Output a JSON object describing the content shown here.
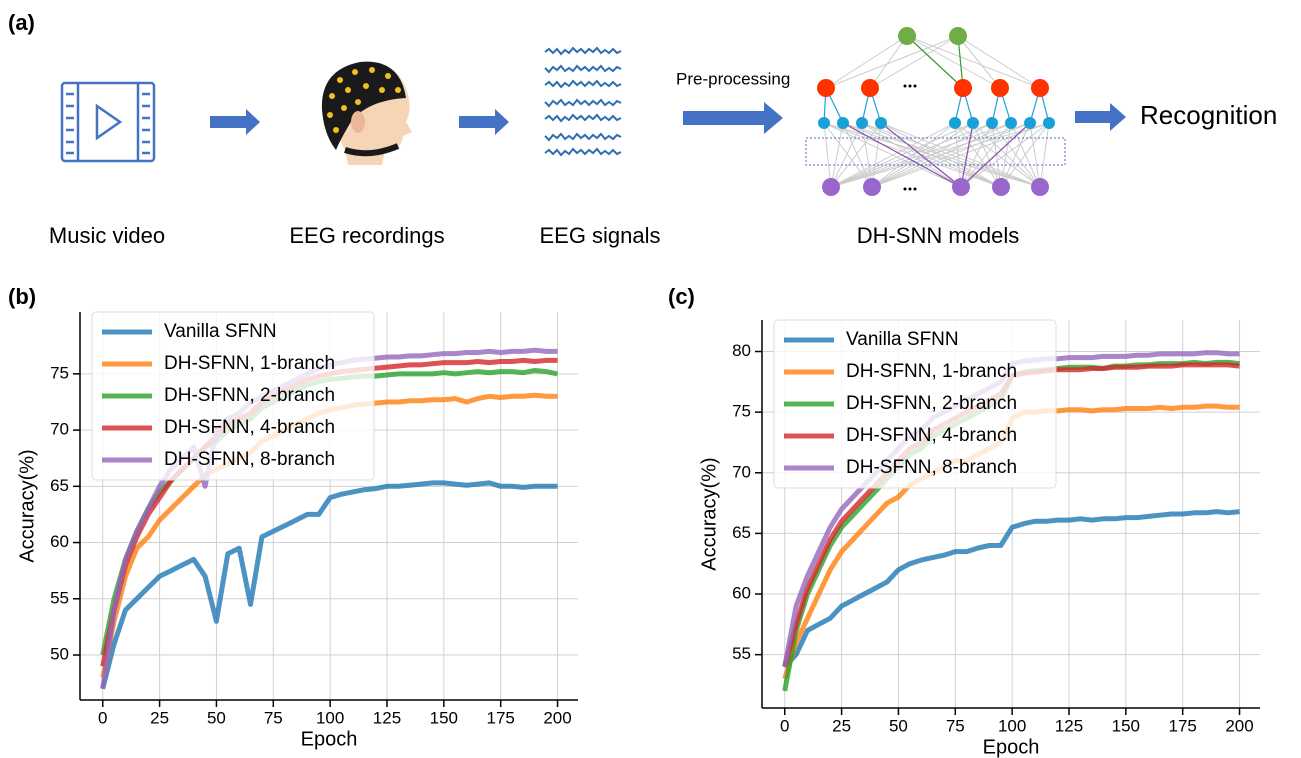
{
  "diagram": {
    "panel_label": "(a)",
    "steps": [
      "Music video",
      "EEG recordings",
      "EEG signals",
      "DH-SNN models"
    ],
    "arrow_label": "Pre-processing",
    "output": "Recognition"
  },
  "chart_data": [
    {
      "type": "line",
      "panel_label": "(b)",
      "x_label": "Epoch",
      "y_label": "Accuracy(%)",
      "grid": true,
      "legend": "upper left",
      "xlim": [
        -10,
        209
      ],
      "ylim": [
        46,
        80.5
      ],
      "xticks": [
        0,
        25,
        50,
        75,
        100,
        125,
        150,
        175,
        200
      ],
      "yticks": [
        50,
        55,
        60,
        65,
        70,
        75
      ],
      "x": [
        0,
        5,
        10,
        15,
        20,
        25,
        30,
        35,
        40,
        45,
        50,
        55,
        60,
        65,
        70,
        75,
        80,
        85,
        90,
        95,
        100,
        105,
        110,
        115,
        120,
        125,
        130,
        135,
        140,
        145,
        150,
        155,
        160,
        165,
        170,
        175,
        180,
        185,
        190,
        195,
        200
      ],
      "series": [
        {
          "name": "Vanilla SFNN",
          "color": "#1f77b4",
          "values": [
            47,
            51,
            54,
            55,
            56,
            57,
            57.5,
            58,
            58.5,
            57,
            53,
            59,
            59.5,
            54.5,
            60.5,
            61,
            61.5,
            62,
            62.5,
            62.5,
            64,
            64.3,
            64.5,
            64.7,
            64.8,
            65,
            65,
            65.1,
            65.2,
            65.3,
            65.3,
            65.2,
            65.1,
            65.2,
            65.3,
            65,
            65,
            64.9,
            65,
            65,
            65
          ]
        },
        {
          "name": "DH-SFNN, 1-branch",
          "color": "#ff7f0e",
          "values": [
            48,
            53,
            57,
            59.5,
            60.5,
            62,
            63,
            64,
            65,
            66,
            66.5,
            67,
            67.5,
            68,
            69,
            69.5,
            70,
            70.5,
            71,
            71.5,
            71.8,
            72,
            72.2,
            72.3,
            72.4,
            72.5,
            72.5,
            72.6,
            72.6,
            72.7,
            72.7,
            72.8,
            72.5,
            72.8,
            73,
            72.9,
            73,
            73,
            73.1,
            73,
            73
          ]
        },
        {
          "name": "DH-SFNN, 2-branch",
          "color": "#2ca02c",
          "values": [
            50,
            55,
            58.5,
            61,
            63,
            64.5,
            65.5,
            66.5,
            67.5,
            68.5,
            69,
            70,
            70.5,
            71,
            72,
            72.5,
            73,
            73.5,
            74,
            74.3,
            74.5,
            74.6,
            74.7,
            74.8,
            74.8,
            74.9,
            75,
            75,
            75,
            75,
            75.1,
            75,
            75.1,
            75.2,
            75.1,
            75.2,
            75.2,
            75.1,
            75.3,
            75.2,
            75
          ]
        },
        {
          "name": "DH-SFNN, 4-branch",
          "color": "#d62728",
          "values": [
            49,
            54,
            58,
            60.5,
            62.5,
            64,
            65.5,
            66.5,
            67.5,
            68.5,
            69.5,
            70.5,
            71,
            71.5,
            72.5,
            73,
            73.5,
            74,
            74.5,
            74.8,
            75,
            75.2,
            75.3,
            75.4,
            75.5,
            75.6,
            75.7,
            75.8,
            75.8,
            75.9,
            76,
            76,
            76,
            76.1,
            76,
            76.1,
            76.1,
            76.2,
            76.1,
            76.2,
            76.2
          ]
        },
        {
          "name": "DH-SFNN, 8-branch",
          "color": "#9467bd",
          "values": [
            47,
            54,
            58.5,
            61,
            63,
            65,
            66.5,
            67.5,
            68.5,
            65,
            70,
            71,
            71.5,
            72.5,
            73,
            73.5,
            74,
            74.5,
            75,
            75.5,
            75.8,
            76,
            76.2,
            76.3,
            76.4,
            76.5,
            76.5,
            76.6,
            76.6,
            76.7,
            76.8,
            76.8,
            76.9,
            76.9,
            77,
            76.9,
            77,
            77,
            77.1,
            77,
            77
          ]
        }
      ]
    },
    {
      "type": "line",
      "panel_label": "(c)",
      "x_label": "Epoch",
      "y_label": "Accuracy(%)",
      "grid": true,
      "legend": "upper left",
      "xlim": [
        -10,
        209
      ],
      "ylim": [
        50.6,
        82.6
      ],
      "xticks": [
        0,
        25,
        50,
        75,
        100,
        125,
        150,
        175,
        200
      ],
      "yticks": [
        55,
        60,
        65,
        70,
        75,
        80
      ],
      "x": [
        0,
        5,
        10,
        15,
        20,
        25,
        30,
        35,
        40,
        45,
        50,
        55,
        60,
        65,
        70,
        75,
        80,
        85,
        90,
        95,
        100,
        105,
        110,
        115,
        120,
        125,
        130,
        135,
        140,
        145,
        150,
        155,
        160,
        165,
        170,
        175,
        180,
        185,
        190,
        195,
        200
      ],
      "series": [
        {
          "name": "Vanilla SFNN",
          "color": "#1f77b4",
          "values": [
            54,
            55,
            57,
            57.5,
            58,
            59,
            59.5,
            60,
            60.5,
            61,
            62,
            62.5,
            62.8,
            63,
            63.2,
            63.5,
            63.5,
            63.8,
            64,
            64,
            65.5,
            65.8,
            66,
            66,
            66.1,
            66.1,
            66.2,
            66.1,
            66.2,
            66.2,
            66.3,
            66.3,
            66.4,
            66.5,
            66.6,
            66.6,
            66.7,
            66.7,
            66.8,
            66.7,
            66.8
          ]
        },
        {
          "name": "DH-SFNN, 1-branch",
          "color": "#ff7f0e",
          "values": [
            53,
            56,
            58,
            60,
            62,
            63.5,
            64.5,
            65.5,
            66.5,
            67.5,
            68,
            69,
            69.5,
            70,
            70.5,
            71,
            71,
            71.5,
            72,
            72.5,
            74.5,
            75,
            75,
            75.1,
            75.1,
            75.2,
            75.2,
            75.1,
            75.2,
            75.2,
            75.3,
            75.3,
            75.3,
            75.4,
            75.3,
            75.4,
            75.4,
            75.5,
            75.5,
            75.4,
            75.4
          ]
        },
        {
          "name": "DH-SFNN, 2-branch",
          "color": "#2ca02c",
          "values": [
            52,
            57,
            60,
            62,
            64,
            65.5,
            66.5,
            67.5,
            68.5,
            69.5,
            70.5,
            71.5,
            72,
            73,
            73.5,
            74,
            74.5,
            75,
            75.5,
            76,
            78,
            78.3,
            78.4,
            78.5,
            78.6,
            78.7,
            78.7,
            78.7,
            78.6,
            78.8,
            78.8,
            78.9,
            78.9,
            79,
            79,
            79,
            79.1,
            79,
            79.1,
            79.1,
            79
          ]
        },
        {
          "name": "DH-SFNN, 4-branch",
          "color": "#d62728",
          "values": [
            54,
            57.5,
            60.5,
            62.5,
            64.5,
            66,
            67,
            68,
            69,
            70,
            71,
            72,
            72.5,
            73.5,
            74,
            74.5,
            75,
            75.5,
            76,
            76.5,
            78,
            78.2,
            78.3,
            78.4,
            78.5,
            78.5,
            78.5,
            78.6,
            78.6,
            78.7,
            78.7,
            78.7,
            78.8,
            78.8,
            78.8,
            78.9,
            78.9,
            78.9,
            78.9,
            78.9,
            78.8
          ]
        },
        {
          "name": "DH-SFNN, 8-branch",
          "color": "#9467bd",
          "values": [
            54,
            59,
            61.5,
            63.5,
            65.5,
            67,
            68,
            69,
            70,
            71,
            72,
            73,
            73.5,
            74.5,
            75,
            75.5,
            76,
            76.5,
            77,
            77.5,
            79,
            79.2,
            79.3,
            79.4,
            79.4,
            79.5,
            79.5,
            79.5,
            79.6,
            79.6,
            79.6,
            79.7,
            79.7,
            79.8,
            79.8,
            79.8,
            79.8,
            79.9,
            79.9,
            79.8,
            79.8
          ]
        }
      ]
    }
  ]
}
